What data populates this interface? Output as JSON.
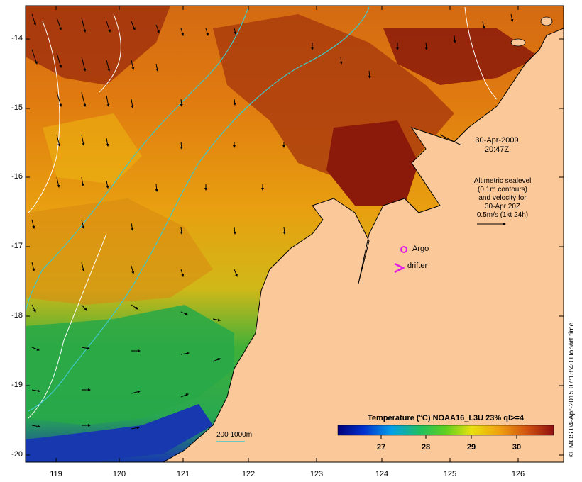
{
  "map": {
    "y_axis_labels": [
      "-14",
      "-15",
      "-16",
      "-17",
      "-18",
      "-19",
      "-20"
    ],
    "x_axis_labels": [
      "119",
      "120",
      "121",
      "122",
      "123",
      "124",
      "125",
      "126"
    ],
    "datetime_line1": "30-Apr-2009",
    "datetime_line2": "20:47Z",
    "altimetry_lines": [
      "Altimetric sealevel",
      "(0.1m contours)",
      "and velocity for",
      "30-Apr 20Z",
      "0.5m/s (1kt 24h)"
    ],
    "argo_label": "Argo",
    "drifter_label": "drifter",
    "bathymetry_label": "200  1000m",
    "colorbar_title": "Temperature (°C) NOAA16_L3U 23% ql>=4",
    "colorbar_ticks": [
      "27",
      "28",
      "29",
      "30"
    ],
    "credit": "© IMOS 04-Apr-2015 07:18:40 Hobart time"
  },
  "colors": {
    "land": "#fbc89a",
    "sst_hot": "#8b1a0a",
    "sst_warm": "#d06a10",
    "sst_mid": "#e8b010",
    "sst_cool": "#30b030",
    "sst_cold": "#1030c0",
    "contour_200m": "#40c8c8",
    "argo_marker": "#e020e0"
  }
}
